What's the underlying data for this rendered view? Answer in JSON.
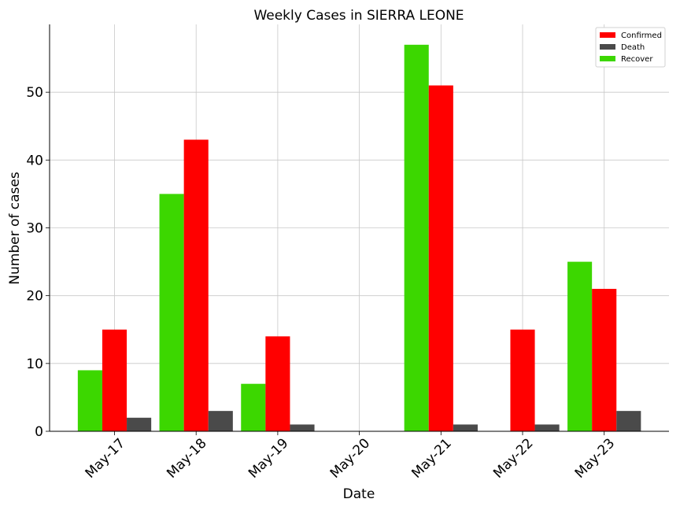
{
  "chart_data": {
    "type": "bar",
    "title": "Weekly Cases in SIERRA LEONE",
    "xlabel": "Date",
    "ylabel": "Number of cases",
    "categories": [
      "May-17",
      "May-18",
      "May-19",
      "May-20",
      "May-21",
      "May-22",
      "May-23"
    ],
    "series": [
      {
        "name": "Recover",
        "color": "#3cd700",
        "values": [
          9,
          35,
          7,
          0,
          57,
          0,
          25
        ]
      },
      {
        "name": "Confirmed",
        "color": "#ff0000",
        "values": [
          15,
          43,
          14,
          0,
          51,
          15,
          21
        ]
      },
      {
        "name": "Death",
        "color": "#4a4a4a",
        "values": [
          2,
          3,
          1,
          0,
          1,
          1,
          3
        ]
      }
    ],
    "legend_order": [
      "Confirmed",
      "Death",
      "Recover"
    ],
    "ylim": [
      0,
      60
    ],
    "yticks": [
      0,
      10,
      20,
      30,
      40,
      50
    ],
    "grid": true,
    "legend_position": "top-right"
  }
}
